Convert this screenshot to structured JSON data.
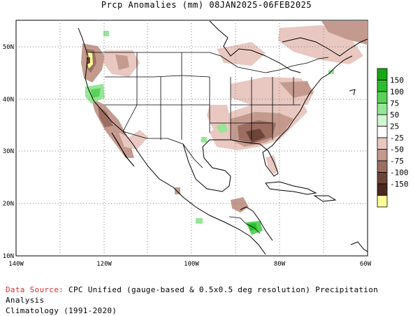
{
  "title": "Prcp Anomalies (mm) 08JAN2025-06FEB2025",
  "map": {
    "lon_range": [
      -140,
      -60
    ],
    "lat_range": [
      10,
      55
    ],
    "lon_ticks": [
      "140W",
      "120W",
      "100W",
      "80W",
      "60W"
    ],
    "lat_ticks": [
      "50N",
      "40N",
      "30N",
      "20N",
      "10N"
    ],
    "grid": "dotted"
  },
  "legend": {
    "entries": [
      {
        "label": "150",
        "color": "#16a616"
      },
      {
        "label": "100",
        "color": "#2cbf2c"
      },
      {
        "label": "75",
        "color": "#5ad25a"
      },
      {
        "label": "50",
        "color": "#96e696"
      },
      {
        "label": "25",
        "color": "#d2f5d2"
      },
      {
        "label": "-25",
        "color": "#ffffff"
      },
      {
        "label": "-50",
        "color": "#e8c8c0"
      },
      {
        "label": "-75",
        "color": "#c49a8e"
      },
      {
        "label": "-100",
        "color": "#9c6e62"
      },
      {
        "label": "-150",
        "color": "#6e4438"
      },
      {
        "label": "",
        "color": "#4a2a20"
      },
      {
        "label": "",
        "color": "#ffff9a"
      }
    ]
  },
  "footer": {
    "source_label": "Data Source:",
    "source_text": "CPC Unified (gauge-based & 0.5x0.5 deg resolution) Precipitation Analysis",
    "climatology": "Climatology (1991-2020)"
  }
}
